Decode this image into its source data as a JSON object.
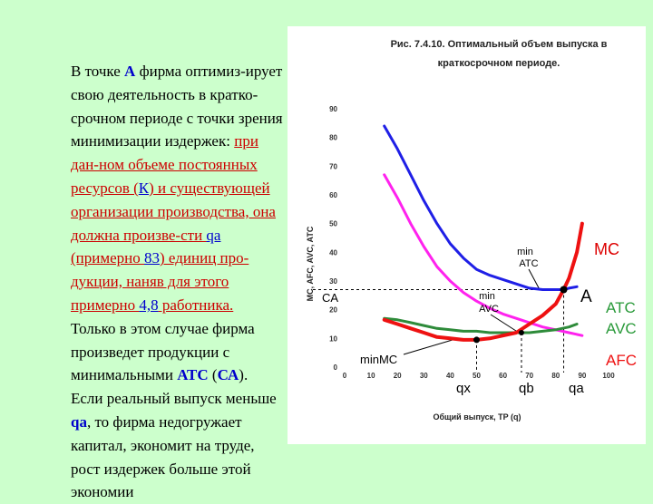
{
  "text": {
    "p1_a": "В точке ",
    "p1_b": "А",
    "p1_c": " фирма оптимиз-ирует свою деятельность в кратко-срочном периоде с точки зрения минимизации издержек: ",
    "p1_d": "при дан-ном объеме постоянных ресурсов (",
    "p1_e": "К",
    "p1_f": ") и существующей организации производства, она должна произве-сти ",
    "p1_g": "qa",
    "p1_h": " (примерно ",
    "p1_i": "83",
    "p1_j": ") единиц про-дукции, наняв для этого примерно ",
    "p1_k": "4,8",
    "p1_l": " работника.",
    "p2_a": "Только в этом случае фирма произведет продукции с минимальными ",
    "p2_b": "АТС",
    "p2_c": " (",
    "p2_d": "СА",
    "p2_e": ").",
    "p3_a": "Если реальный выпуск меньше ",
    "p3_b": "qa",
    "p3_c": ", то фирма недогружает капитал, экономит на труде, рост издержек больше этой экономии"
  },
  "chart": {
    "title_line1": "Рис. 7.4.10. Оптимальный объем выпуска в",
    "title_line2": "краткосрочном периоде.",
    "ylabel": "MC, AFC, AVC, ATC",
    "xlabel": "Общий выпуск, TP (q)",
    "label_mc": "MC",
    "label_atc": "ATC",
    "label_avc": "AVC",
    "label_afc": "AFC",
    "label_A": "A",
    "label_CA": "CA",
    "label_min_atc_1": "min",
    "label_min_atc_2": "ATC",
    "label_min_avc_1": "min",
    "label_min_avc_2": "AVC",
    "label_min_mc": "minMC",
    "label_qx": "qx",
    "label_qb": "qb",
    "label_qa": "qa",
    "colors": {
      "atc": "#1f1fe6",
      "avc": "#2e8b3a",
      "afc": "#ff22ee",
      "mc": "#ee1111"
    }
  },
  "chart_data": {
    "type": "line",
    "xlim": [
      0,
      100
    ],
    "ylim": [
      0,
      90
    ],
    "xticks": [
      0,
      10,
      20,
      30,
      40,
      50,
      60,
      70,
      80,
      90,
      100
    ],
    "yticks": [
      0,
      10,
      20,
      30,
      40,
      50,
      60,
      70,
      80,
      90
    ],
    "series": [
      {
        "name": "ATC",
        "x": [
          15,
          20,
          25,
          30,
          35,
          40,
          45,
          50,
          55,
          60,
          65,
          70,
          75,
          80,
          83,
          85,
          88
        ],
        "y": [
          84,
          76,
          67,
          58,
          50,
          43,
          38,
          34,
          32,
          30.5,
          29,
          27.5,
          27,
          27,
          27,
          27.5,
          28
        ]
      },
      {
        "name": "AVC",
        "x": [
          15,
          20,
          25,
          30,
          35,
          40,
          45,
          50,
          55,
          60,
          65,
          70,
          75,
          80,
          85,
          88
        ],
        "y": [
          17,
          16.5,
          15.5,
          14.5,
          13.5,
          13,
          12.5,
          12.5,
          12,
          12,
          12,
          12,
          12.5,
          13,
          14,
          15
        ]
      },
      {
        "name": "AFC",
        "x": [
          15,
          20,
          25,
          30,
          35,
          40,
          45,
          50,
          55,
          60,
          65,
          70,
          75,
          80,
          85,
          90
        ],
        "y": [
          67,
          59,
          50,
          42,
          35,
          30,
          26,
          23,
          20.5,
          18.5,
          17,
          15.5,
          14,
          13,
          12,
          11
        ]
      },
      {
        "name": "MC",
        "x": [
          15,
          20,
          25,
          30,
          35,
          40,
          45,
          50,
          55,
          60,
          65,
          70,
          75,
          80,
          83,
          85,
          88,
          90
        ],
        "y": [
          16.5,
          15,
          13.5,
          12,
          10.5,
          10,
          9.5,
          9.5,
          10,
          11,
          12,
          15,
          18,
          22,
          27,
          31,
          40,
          50
        ]
      }
    ]
  }
}
